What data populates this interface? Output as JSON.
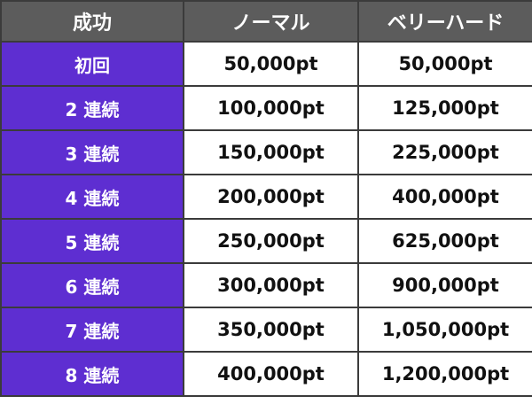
{
  "header": {
    "col1": "成功",
    "col2": "ノーマル",
    "col3": "ベリーハード"
  },
  "rows": [
    {
      "label": "初回",
      "normal": "50,000pt",
      "very_hard": "50,000pt"
    },
    {
      "label": "2 連続",
      "normal": "100,000pt",
      "very_hard": "125,000pt"
    },
    {
      "label": "3 連続",
      "normal": "150,000pt",
      "very_hard": "225,000pt"
    },
    {
      "label": "4 連続",
      "normal": "200,000pt",
      "very_hard": "400,000pt"
    },
    {
      "label": "5 連続",
      "normal": "250,000pt",
      "very_hard": "625,000pt"
    },
    {
      "label": "6 連続",
      "normal": "300,000pt",
      "very_hard": "900,000pt"
    },
    {
      "label": "7 連続",
      "normal": "350,000pt",
      "very_hard": "1,050,000pt"
    },
    {
      "label": "8 連続",
      "normal": "400,000pt",
      "very_hard": "1,200,000pt"
    }
  ],
  "colors": {
    "header_bg": "#5c5c5c",
    "label_bg": "#5e2ed1",
    "border": "#3b3b3b"
  }
}
